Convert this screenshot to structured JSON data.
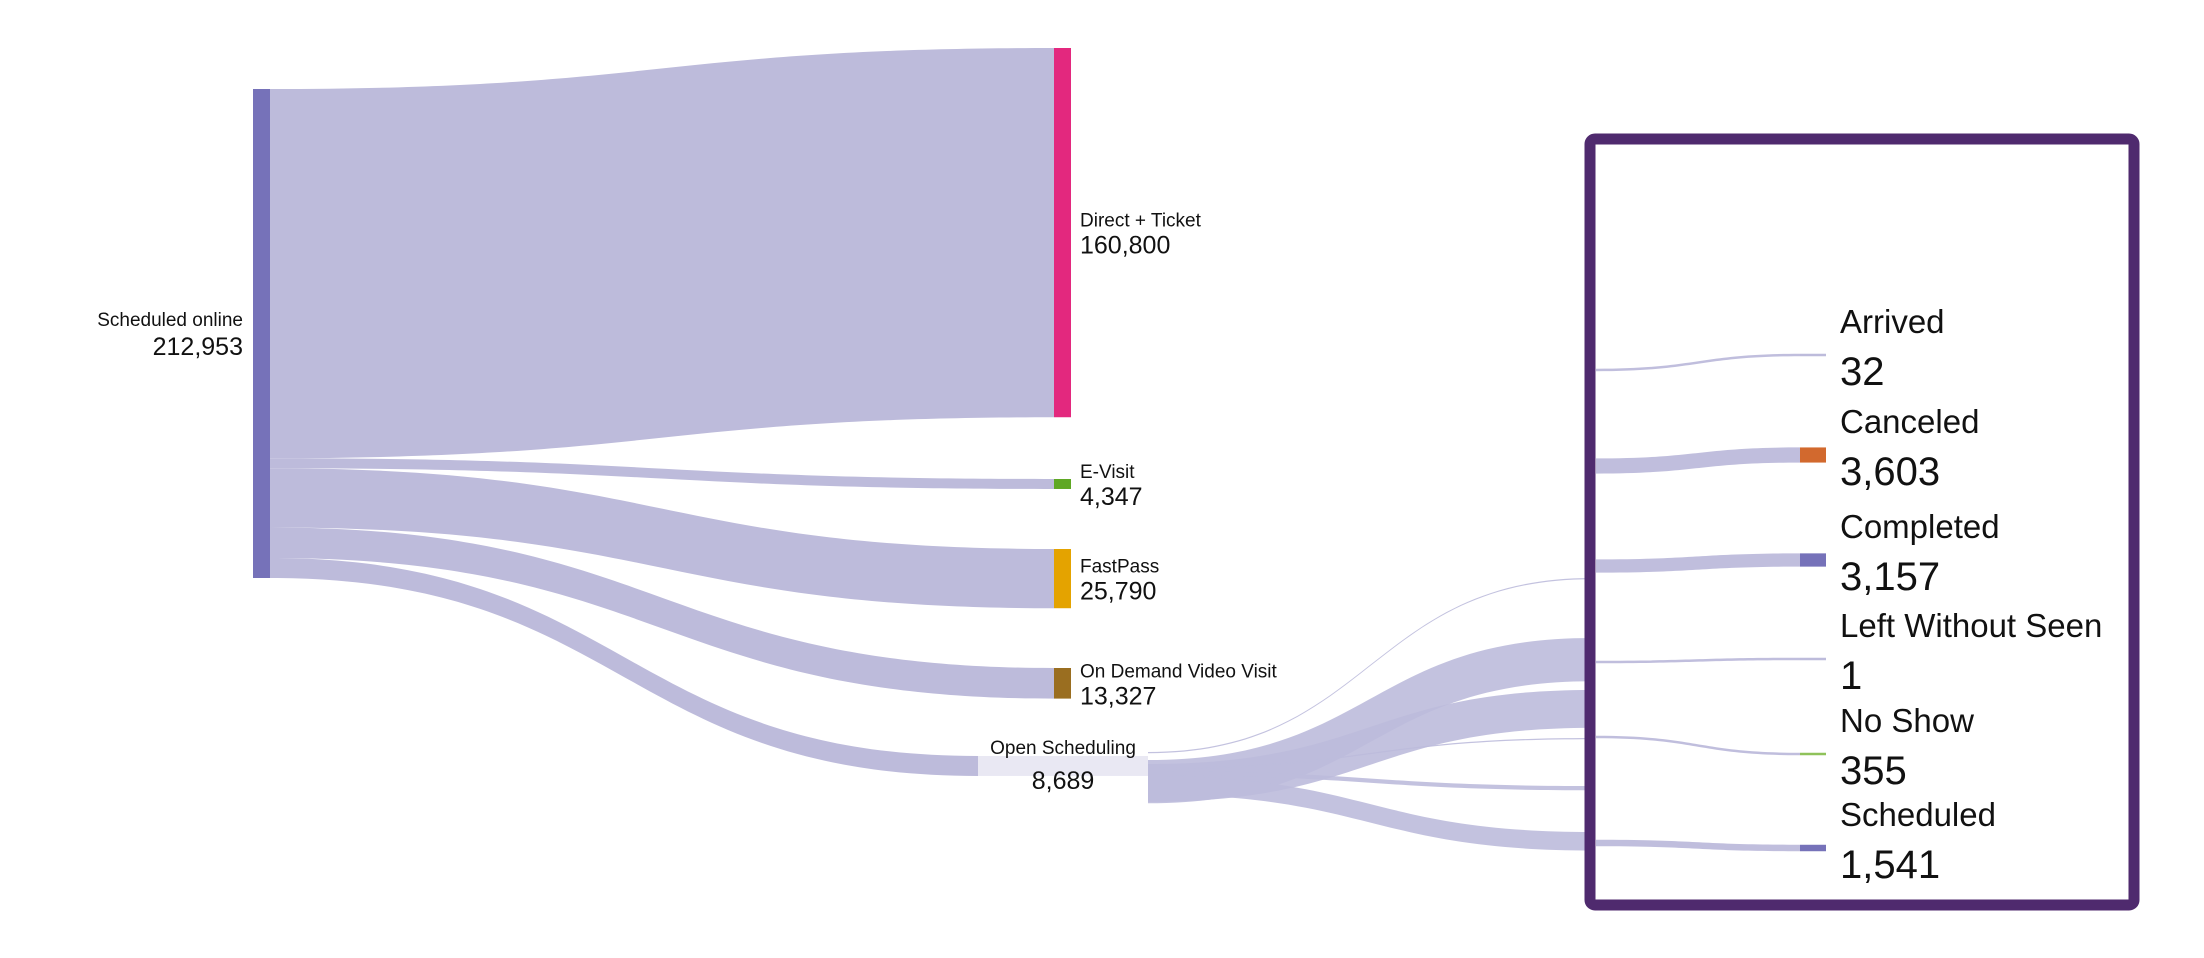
{
  "colors": {
    "link": "#bdbbdb",
    "inset_border": "#4f2a6e",
    "source_node": "#7672b9",
    "open_scheduling_node": "#e9e8f3"
  },
  "source": {
    "name": "Scheduled online",
    "value": 212953,
    "value_text": "212,953"
  },
  "targets": [
    {
      "name": "Direct + Ticket",
      "value": 160800,
      "value_text": "160,800",
      "color": "#e3287e"
    },
    {
      "name": "E-Visit",
      "value": 4347,
      "value_text": "4,347",
      "color": "#5fa824"
    },
    {
      "name": "FastPass",
      "value": 25790,
      "value_text": "25,790",
      "color": "#e4a300"
    },
    {
      "name": "On Demand Video Visit",
      "value": 13327,
      "value_text": "13,327",
      "color": "#9a6e20"
    },
    {
      "name": "Open Scheduling",
      "value": 8689,
      "value_text": "8,689",
      "color": "#e9e8f3"
    }
  ],
  "outcomes": [
    {
      "name": "Arrived",
      "value": 32,
      "value_text": "32",
      "color": "#bdbbdb"
    },
    {
      "name": "Canceled",
      "value": 3603,
      "value_text": "3,603",
      "color": "#d2692e"
    },
    {
      "name": "Completed",
      "value": 3157,
      "value_text": "3,157",
      "color": "#7672b9"
    },
    {
      "name": "Left Without Seen",
      "value": 1,
      "value_text": "1",
      "color": "#bdbbdb"
    },
    {
      "name": "No Show",
      "value": 355,
      "value_text": "355",
      "color": "#8fc25a"
    },
    {
      "name": "Scheduled",
      "value": 1541,
      "value_text": "1,541",
      "color": "#7672b9"
    }
  ]
}
